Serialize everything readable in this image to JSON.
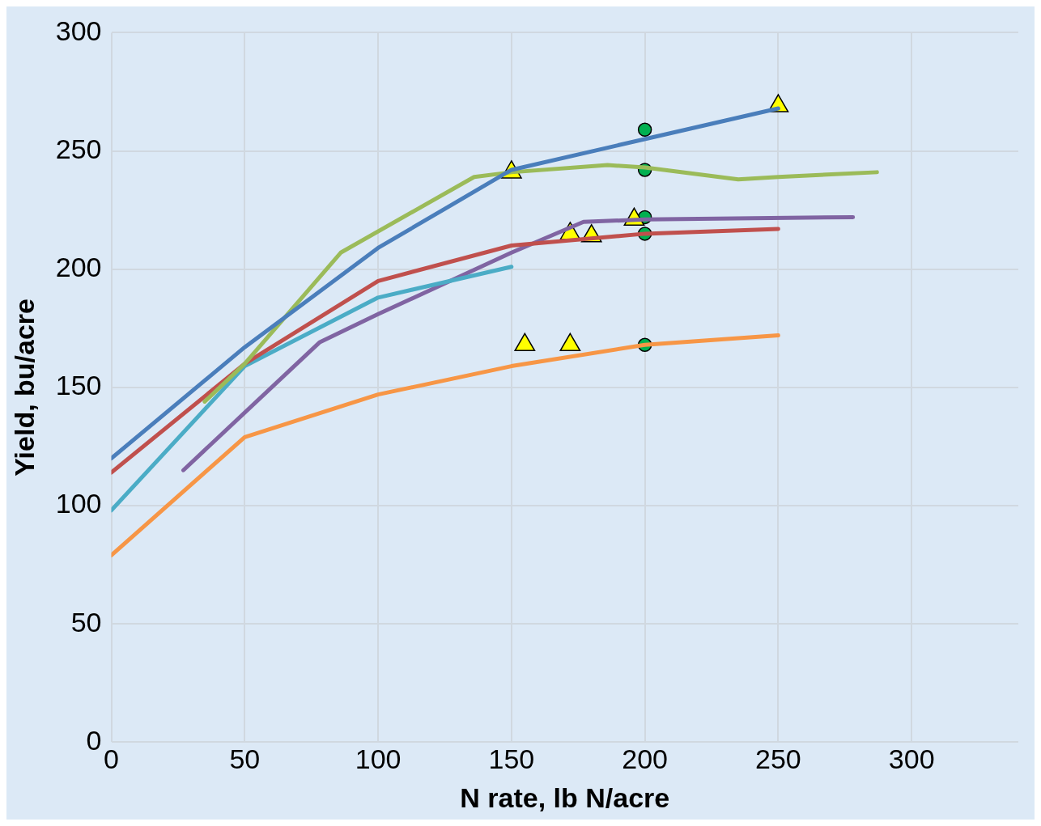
{
  "chart_data": {
    "type": "line",
    "xlabel": "N rate, lb N/acre",
    "ylabel": "Yield, bu/acre",
    "xlim": [
      0,
      340
    ],
    "ylim": [
      0,
      300
    ],
    "xticks": [
      0,
      50,
      100,
      150,
      200,
      250,
      300
    ],
    "yticks": [
      0,
      50,
      100,
      150,
      200,
      250,
      300
    ],
    "grid": true,
    "legend": false,
    "marker": "none",
    "line_style": "solid",
    "series": [
      {
        "color": "#4a7ebb",
        "x": [
          0,
          50,
          100,
          150,
          250
        ],
        "values": [
          120,
          167,
          209,
          242,
          268
        ]
      },
      {
        "color": "#9bbb59",
        "x": [
          35,
          50,
          86,
          136,
          150,
          186,
          200,
          235,
          250,
          287
        ],
        "values": [
          144,
          160,
          207,
          239,
          241,
          244,
          243,
          238,
          239,
          241
        ]
      },
      {
        "color": "#c0504d",
        "x": [
          0,
          50,
          100,
          150,
          200,
          250
        ],
        "values": [
          114,
          160,
          195,
          210,
          215,
          217
        ]
      },
      {
        "color": "#4bacc6",
        "x": [
          0,
          50,
          100,
          150
        ],
        "values": [
          98,
          159,
          188,
          201
        ]
      },
      {
        "color": "#8064a2",
        "x": [
          27,
          78,
          100,
          150,
          177,
          200,
          278
        ],
        "values": [
          115,
          169,
          181,
          207,
          220,
          221,
          222
        ]
      },
      {
        "color": "#f79646",
        "x": [
          0,
          50,
          100,
          150,
          200,
          250
        ],
        "values": [
          79,
          129,
          147,
          159,
          168,
          172
        ]
      },
      {
        "type": "scatter",
        "marker": "triangle",
        "color": "#ffff00",
        "x": [
          150,
          250,
          172,
          180,
          196,
          155,
          172
        ],
        "values": [
          241,
          269,
          215,
          214,
          221,
          168,
          168
        ]
      },
      {
        "type": "scatter",
        "marker": "circle",
        "color": "#00b050",
        "x": [
          200,
          200,
          200,
          200,
          200
        ],
        "values": [
          259,
          242,
          222,
          215,
          168
        ]
      }
    ]
  }
}
